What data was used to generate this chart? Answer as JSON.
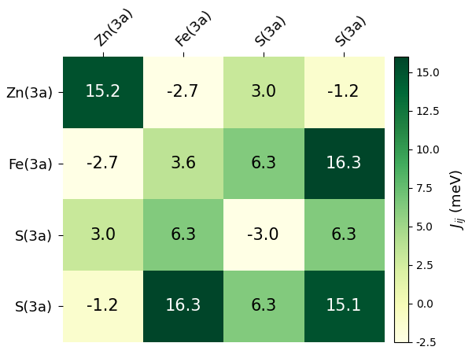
{
  "matrix": [
    [
      15.2,
      -2.7,
      3.0,
      -1.2
    ],
    [
      -2.7,
      3.6,
      6.3,
      16.3
    ],
    [
      3.0,
      6.3,
      -3.0,
      6.3
    ],
    [
      -1.2,
      16.3,
      6.3,
      15.1
    ]
  ],
  "row_labels": [
    "Zn(3a)",
    "Fe(3a)",
    "S(3a)",
    "S(3a)"
  ],
  "col_labels": [
    "Zn(3a)",
    "Fe(3a)",
    "S(3a)",
    "S(3a)"
  ],
  "cmap": "YlGn",
  "vmin": -2.5,
  "vmax": 16.0,
  "colorbar_label": "$J_{ij}$ (meV)",
  "colorbar_ticks": [
    -2.5,
    0.0,
    2.5,
    5.0,
    7.5,
    10.0,
    12.5,
    15.0
  ],
  "white_text_threshold": 10.0,
  "dark_text_color": "black",
  "light_text_color": "white",
  "fontsize_cell": 15,
  "fontsize_label": 13,
  "fontsize_colorbar": 13,
  "fig_width": 6.0,
  "fig_height": 4.5
}
